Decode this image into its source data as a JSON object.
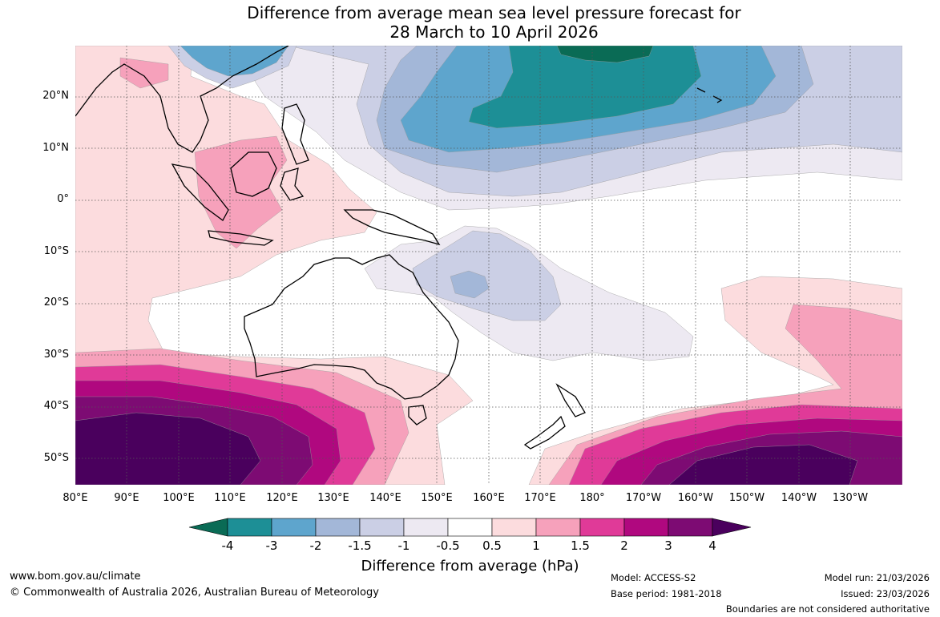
{
  "title": {
    "line1": "Difference from average mean sea level pressure forecast for",
    "line2": "28 March to 10 April 2026"
  },
  "map": {
    "latitude_labels": [
      "20°N",
      "10°N",
      "0°",
      "10°S",
      "20°S",
      "30°S",
      "40°S",
      "50°S"
    ],
    "longitude_labels": [
      "80°E",
      "90°E",
      "100°E",
      "110°E",
      "120°E",
      "130°E",
      "140°E",
      "150°E",
      "160°E",
      "170°E",
      "180°",
      "170°W",
      "160°W",
      "150°W",
      "140°W",
      "130°W"
    ],
    "regions": [
      {
        "name": "North Pacific low anomaly",
        "peak_hPa": -4
      },
      {
        "name": "Maritime Continent high anomaly",
        "peak_hPa": 1.5
      },
      {
        "name": "Southern Indian Ocean high anomaly",
        "peak_hPa": 4
      },
      {
        "name": "Southern Pacific high anomaly",
        "peak_hPa": 4
      },
      {
        "name": "Coral Sea low anomaly",
        "peak_hPa": -1.5
      }
    ]
  },
  "colorbar": {
    "title": "Difference from average (hPa)",
    "ticks": [
      "-4",
      "-3",
      "-2",
      "-1.5",
      "-1",
      "-0.5",
      "0.5",
      "1",
      "1.5",
      "2",
      "3",
      "4"
    ],
    "colors": {
      "under": "#0a6b55",
      "c1": "#1d8f96",
      "c2": "#5ea5cd",
      "c3": "#a3b7d8",
      "c4": "#cbcfe5",
      "c5": "#ede9f2",
      "c6": "#ffffff",
      "c7": "#fcdcde",
      "c8": "#f6a1bb",
      "c9": "#e03a98",
      "c10": "#b0087f",
      "c11": "#7d0b73",
      "over": "#4a005d"
    }
  },
  "footer": {
    "url": "www.bom.gov.au/climate",
    "copyright": "© Commonwealth of Australia 2026, Australian Bureau of Meteorology",
    "model": "Model: ACCESS-S2",
    "base_period": "Base period: 1981-2018",
    "model_run": "Model run: 21/03/2026",
    "issued": "Issued: 23/03/2026",
    "disclaimer": "Boundaries are not considered authoritative"
  }
}
